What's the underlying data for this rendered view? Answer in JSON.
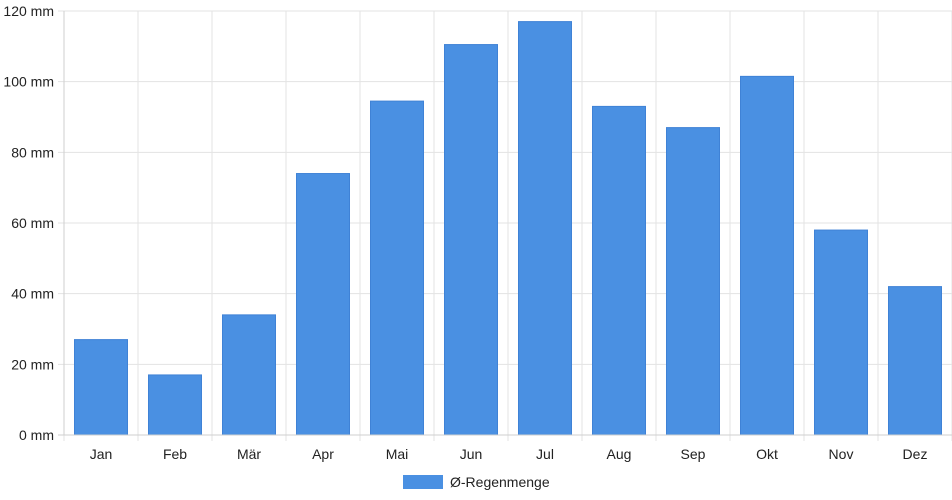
{
  "chart_data": {
    "type": "bar",
    "categories": [
      "Jan",
      "Feb",
      "Mär",
      "Apr",
      "Mai",
      "Jun",
      "Jul",
      "Aug",
      "Sep",
      "Okt",
      "Nov",
      "Dez"
    ],
    "series": [
      {
        "name": "Ø-Regenmenge",
        "values": [
          27,
          17,
          34,
          74,
          94.5,
          110.5,
          117,
          93,
          87,
          101.5,
          58,
          42
        ],
        "color": "#4a90e2"
      }
    ],
    "title": "",
    "xlabel": "",
    "ylabel": "",
    "ylim": [
      0,
      120
    ],
    "y_ticks": [
      0,
      20,
      40,
      60,
      80,
      100,
      120
    ],
    "y_unit": " mm",
    "grid": true,
    "legend_position": "bottom-center"
  }
}
